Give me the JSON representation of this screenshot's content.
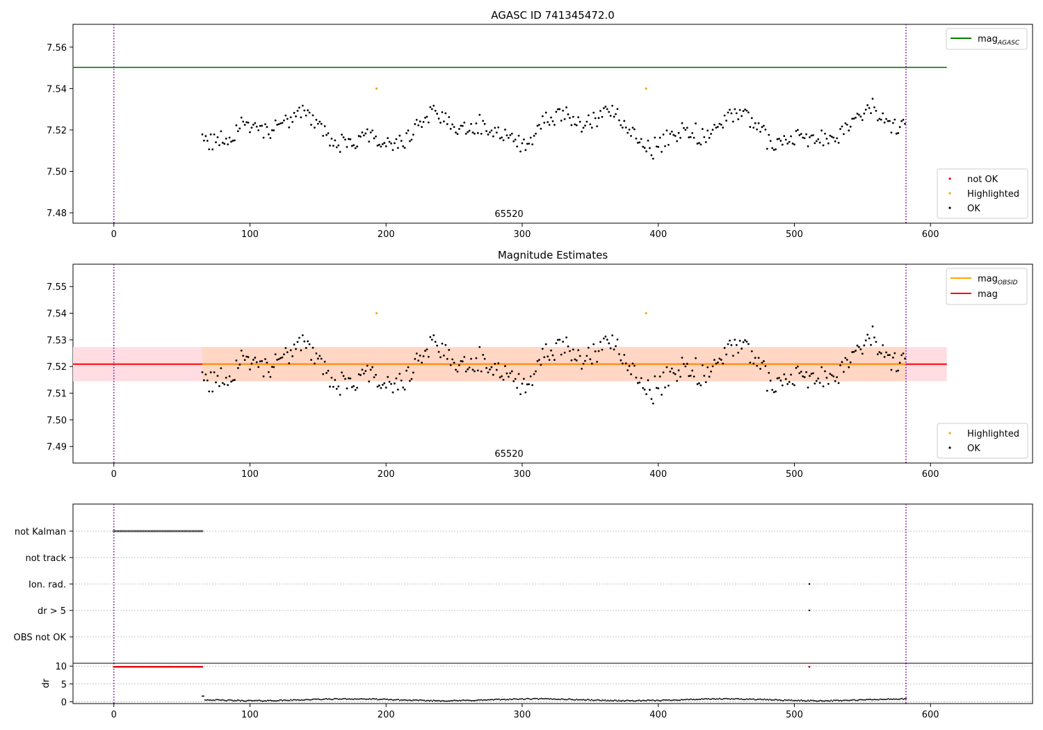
{
  "chart_data": [
    {
      "type": "scatter",
      "title": "AGASC ID 741345472.0",
      "obsid_label": "65520",
      "xlim": [
        -30,
        675
      ],
      "ylim": [
        7.475,
        7.571
      ],
      "xticks": [
        0,
        100,
        200,
        300,
        400,
        500,
        600
      ],
      "yticks": [
        7.48,
        7.5,
        7.52,
        7.54,
        7.56
      ],
      "ytick_decimals": 2,
      "vlines": [
        0,
        582
      ],
      "hlines": [
        {
          "name": "mag_AGASC",
          "y": 7.5502,
          "x0": -30,
          "x1": 612,
          "color": "#008000"
        }
      ],
      "line_legend": [
        {
          "label": "mag",
          "sub": "AGASC",
          "color": "#008000"
        }
      ],
      "marker_legend": [
        {
          "label": "not OK",
          "color": "#ff0000"
        },
        {
          "label": "Highlighted",
          "color": "#ffa500"
        },
        {
          "label": "OK",
          "color": "#000000"
        }
      ],
      "highlighted": [
        [
          193,
          7.54
        ],
        [
          391,
          7.54
        ]
      ]
    },
    {
      "type": "scatter",
      "title": "Magnitude Estimates",
      "obsid_label": "65520",
      "xlim": [
        -30,
        675
      ],
      "ylim": [
        7.4838,
        7.5584
      ],
      "xticks": [
        0,
        100,
        200,
        300,
        400,
        500,
        600
      ],
      "yticks": [
        7.49,
        7.5,
        7.51,
        7.52,
        7.53,
        7.54,
        7.55
      ],
      "ytick_decimals": 2,
      "vlines": [
        0,
        582
      ],
      "band_outer": {
        "y0": 7.5145,
        "y1": 7.5273,
        "x0": -30,
        "x1": 612,
        "color": "#ffdde2"
      },
      "band_inner": {
        "y0": 7.5145,
        "y1": 7.5273,
        "x0": 65,
        "x1": 582,
        "color": "#ffd7c4"
      },
      "mag_line": {
        "y": 7.5209,
        "x0": -30,
        "x1": 612,
        "color": "#ff0000"
      },
      "line_legend": [
        {
          "label": "mag",
          "sub": "OBSID",
          "color": "#ffa500"
        },
        {
          "label": "mag",
          "sub": "",
          "color": "#ff0000"
        }
      ],
      "marker_legend": [
        {
          "label": "Highlighted",
          "color": "#ffa500"
        },
        {
          "label": "OK",
          "color": "#000000"
        }
      ],
      "highlighted": [
        [
          193,
          7.54
        ],
        [
          391,
          7.54
        ]
      ]
    },
    {
      "type": "scatter",
      "flag_labels": [
        "not Kalman",
        "not track",
        "Ion. rad.",
        "dr > 5",
        "OBS not OK"
      ],
      "flags": [
        {
          "label": "not Kalman",
          "x": [
            0,
            65
          ]
        },
        {
          "label": "Ion. rad.",
          "x": [
            511
          ]
        },
        {
          "label": "dr > 5",
          "x": [
            511
          ]
        }
      ],
      "vlines": [
        0,
        582
      ],
      "xlim": [
        -30,
        675
      ],
      "xticks": [
        0,
        100,
        200,
        300,
        400,
        500,
        600
      ]
    },
    {
      "type": "scatter",
      "ylabel": "dr",
      "ylim": [
        -0.5,
        10.8
      ],
      "yticks": [
        0,
        5,
        10
      ],
      "xlim": [
        -30,
        675
      ],
      "xticks": [
        0,
        100,
        200,
        300,
        400,
        500,
        600
      ],
      "vlines": [
        0,
        582
      ],
      "red_points": {
        "x": [
          0,
          65
        ],
        "y": 9.8,
        "extra_x": [
          511
        ]
      },
      "black_series_note": "dr ~0.3-1.0 from x=65 to 582, start spike 1.6"
    }
  ]
}
